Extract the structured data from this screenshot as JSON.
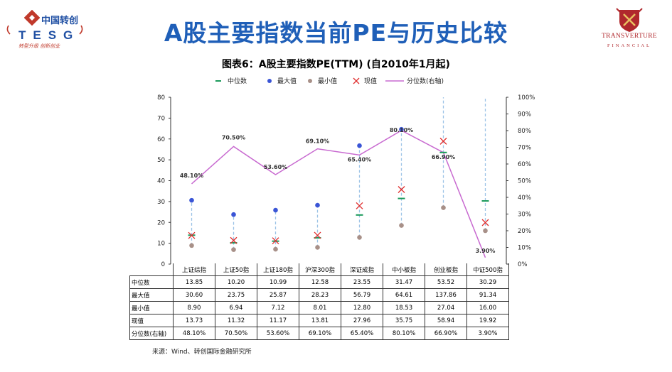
{
  "header": {
    "logo_left_cn": "中国转创",
    "logo_left_en": "TESG",
    "logo_left_slogan": "转型升级 创新创业",
    "title": "A股主要指数当前PE与历史比较",
    "logo_right_name": "TRANSVERTURE",
    "logo_right_sub": "FINANCIAL"
  },
  "colors": {
    "title": "#1f5fb8",
    "median": "#1a9a5a",
    "max": "#3a55d6",
    "min": "#a89088",
    "current": "#e03030",
    "percentile": "#c86ad0",
    "range_line": "#9cc3e6"
  },
  "chart_data": {
    "type": "line",
    "title": "图表6：A股主要指数PE(TTM) (自2010年1月起)",
    "categories": [
      "上证综指",
      "上证50指",
      "上证180指",
      "沪深300指",
      "深证成指",
      "中小板指",
      "创业板指",
      "中证500指"
    ],
    "y_left": {
      "min": 0,
      "max": 80,
      "ticks": [
        "0",
        "10",
        "20",
        "30",
        "40",
        "50",
        "60",
        "70",
        "80"
      ]
    },
    "y_right": {
      "min": 0,
      "max": 100,
      "ticks": [
        "0%",
        "10%",
        "20%",
        "30%",
        "40%",
        "50%",
        "60%",
        "70%",
        "80%",
        "90%",
        "100%"
      ]
    },
    "legend": [
      "中位数",
      "最大值",
      "最小值",
      "现值",
      "分位数(右轴)"
    ],
    "series": [
      {
        "name": "中位数",
        "values": [
          13.85,
          10.2,
          10.99,
          12.58,
          23.55,
          31.47,
          53.52,
          30.29
        ]
      },
      {
        "name": "最大值",
        "values": [
          30.6,
          23.75,
          25.87,
          28.23,
          56.79,
          64.61,
          137.86,
          91.34
        ]
      },
      {
        "name": "最小值",
        "values": [
          8.9,
          6.94,
          7.12,
          8.01,
          12.8,
          18.53,
          27.04,
          16.0
        ]
      },
      {
        "name": "现值",
        "values": [
          13.73,
          11.32,
          11.17,
          13.81,
          27.96,
          35.75,
          58.94,
          19.92
        ]
      },
      {
        "name": "分位数(右轴)",
        "values": [
          48.1,
          70.5,
          53.6,
          69.1,
          65.4,
          80.1,
          66.9,
          3.9
        ]
      }
    ],
    "percentile_labels": [
      "48.10%",
      "70.50%",
      "53.60%",
      "69.10%",
      "65.40%",
      "80.10%",
      "66.90%",
      "3.90%"
    ],
    "table": {
      "row_labels": [
        "中位数",
        "最大值",
        "最小值",
        "现值",
        "分位数(右轴)"
      ],
      "rows": [
        [
          "13.85",
          "10.20",
          "10.99",
          "12.58",
          "23.55",
          "31.47",
          "53.52",
          "30.29"
        ],
        [
          "30.60",
          "23.75",
          "25.87",
          "28.23",
          "56.79",
          "64.61",
          "137.86",
          "91.34"
        ],
        [
          "8.90",
          "6.94",
          "7.12",
          "8.01",
          "12.80",
          "18.53",
          "27.04",
          "16.00"
        ],
        [
          "13.73",
          "11.32",
          "11.17",
          "13.81",
          "27.96",
          "35.75",
          "58.94",
          "19.92"
        ],
        [
          "48.10%",
          "70.50%",
          "53.60%",
          "69.10%",
          "65.40%",
          "80.10%",
          "66.90%",
          "3.90%"
        ]
      ]
    }
  },
  "source": "来源：Wind、转创国际金融研究所"
}
